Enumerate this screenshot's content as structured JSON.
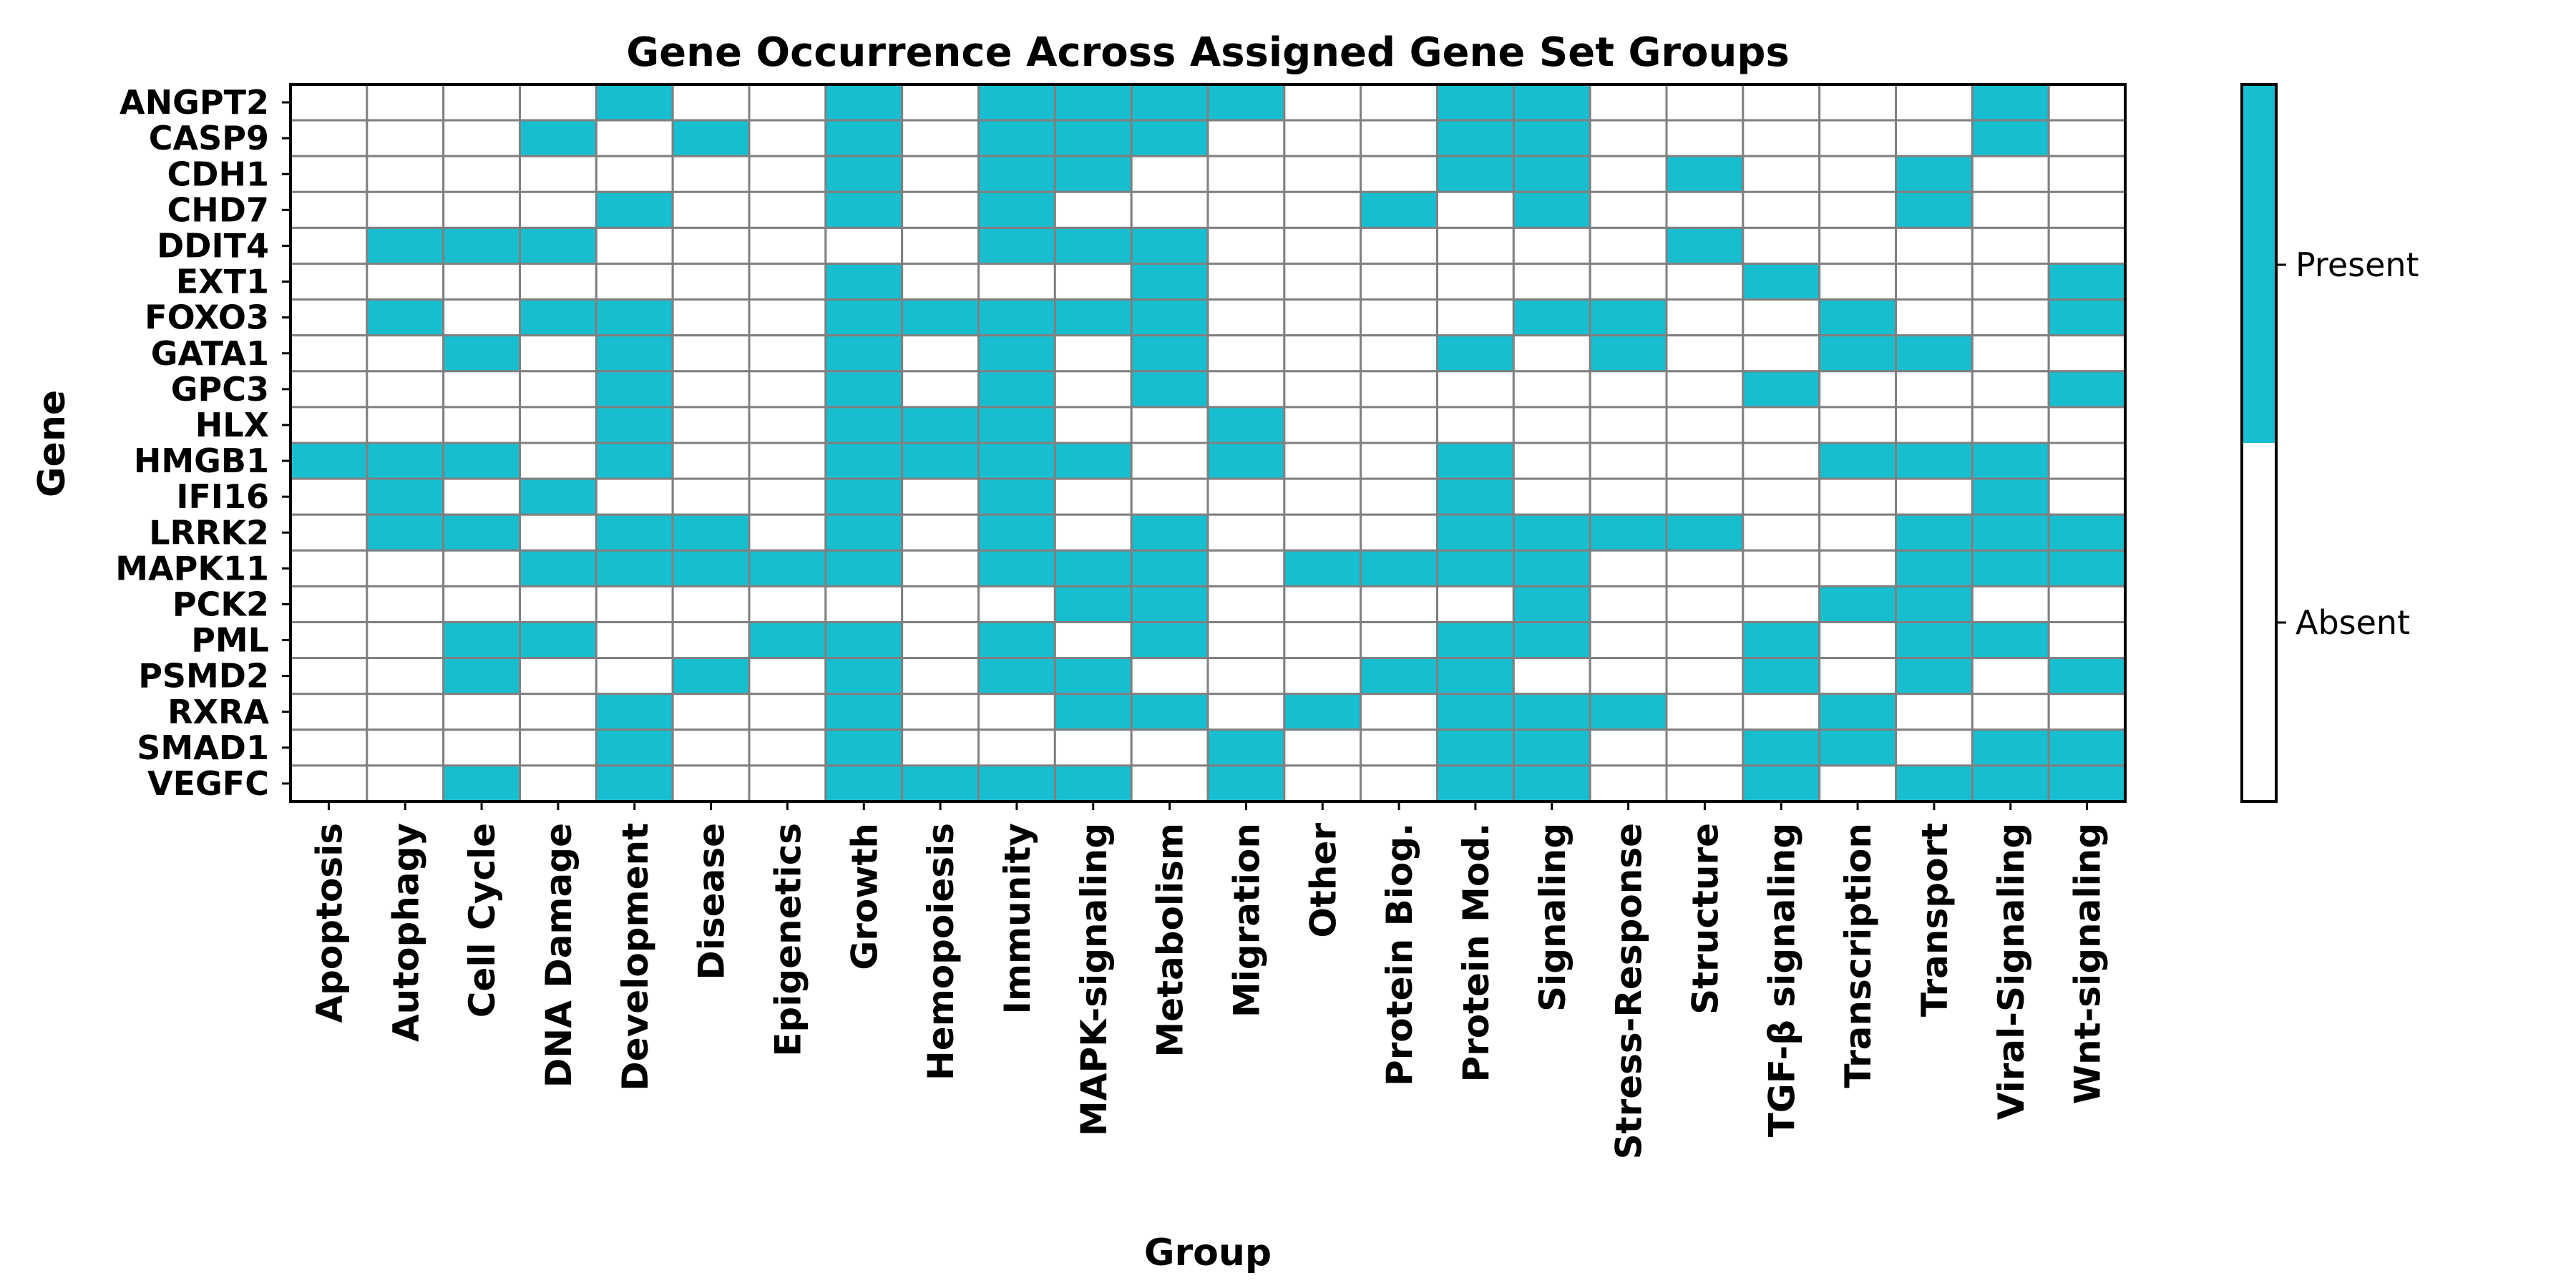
{
  "chart_data": {
    "type": "heatmap",
    "title": "Gene Occurrence Across Assigned Gene Set Groups",
    "xlabel": "Group",
    "ylabel": "Gene",
    "rows": [
      "ANGPT2",
      "CASP9",
      "CDH1",
      "CHD7",
      "DDIT4",
      "EXT1",
      "FOXO3",
      "GATA1",
      "GPC3",
      "HLX",
      "HMGB1",
      "IFI16",
      "LRRK2",
      "MAPK11",
      "PCK2",
      "PML",
      "PSMD2",
      "RXRA",
      "SMAD1",
      "VEGFC"
    ],
    "columns": [
      "Apoptosis",
      "Autophagy",
      "Cell Cycle",
      "DNA Damage",
      "Development",
      "Disease",
      "Epigenetics",
      "Growth",
      "Hemopoiesis",
      "Immunity",
      "MAPK-signaling",
      "Metabolism",
      "Migration",
      "Other",
      "Protein Biog.",
      "Protein Mod.",
      "Signaling",
      "Stress-Response",
      "Structure",
      "TGF-β signaling",
      "Transcription",
      "Transport",
      "Viral-Signaling",
      "Wnt-signaling"
    ],
    "values": [
      [
        0,
        0,
        0,
        0,
        1,
        0,
        0,
        1,
        0,
        1,
        1,
        1,
        1,
        0,
        0,
        1,
        1,
        0,
        0,
        0,
        0,
        0,
        1,
        0
      ],
      [
        0,
        0,
        0,
        1,
        0,
        1,
        0,
        1,
        0,
        1,
        1,
        1,
        0,
        0,
        0,
        1,
        1,
        0,
        0,
        0,
        0,
        0,
        1,
        0
      ],
      [
        0,
        0,
        0,
        0,
        0,
        0,
        0,
        1,
        0,
        1,
        1,
        0,
        0,
        0,
        0,
        1,
        1,
        0,
        1,
        0,
        0,
        1,
        0,
        0
      ],
      [
        0,
        0,
        0,
        0,
        1,
        0,
        0,
        1,
        0,
        1,
        0,
        0,
        0,
        0,
        1,
        0,
        1,
        0,
        0,
        0,
        0,
        1,
        0,
        0
      ],
      [
        0,
        1,
        1,
        1,
        0,
        0,
        0,
        0,
        0,
        1,
        1,
        1,
        0,
        0,
        0,
        0,
        0,
        0,
        1,
        0,
        0,
        0,
        0,
        0
      ],
      [
        0,
        0,
        0,
        0,
        0,
        0,
        0,
        1,
        0,
        0,
        0,
        1,
        0,
        0,
        0,
        0,
        0,
        0,
        0,
        1,
        0,
        0,
        0,
        1
      ],
      [
        0,
        1,
        0,
        1,
        1,
        0,
        0,
        1,
        1,
        1,
        1,
        1,
        0,
        0,
        0,
        0,
        1,
        1,
        0,
        0,
        1,
        0,
        0,
        1
      ],
      [
        0,
        0,
        1,
        0,
        1,
        0,
        0,
        1,
        0,
        1,
        0,
        1,
        0,
        0,
        0,
        1,
        0,
        1,
        0,
        0,
        1,
        1,
        0,
        0
      ],
      [
        0,
        0,
        0,
        0,
        1,
        0,
        0,
        1,
        0,
        1,
        0,
        1,
        0,
        0,
        0,
        0,
        0,
        0,
        0,
        1,
        0,
        0,
        0,
        1
      ],
      [
        0,
        0,
        0,
        0,
        1,
        0,
        0,
        1,
        1,
        1,
        0,
        0,
        1,
        0,
        0,
        0,
        0,
        0,
        0,
        0,
        0,
        0,
        0,
        0
      ],
      [
        1,
        1,
        1,
        0,
        1,
        0,
        0,
        1,
        1,
        1,
        1,
        0,
        1,
        0,
        0,
        1,
        0,
        0,
        0,
        0,
        1,
        1,
        1,
        0
      ],
      [
        0,
        1,
        0,
        1,
        0,
        0,
        0,
        1,
        0,
        1,
        0,
        0,
        0,
        0,
        0,
        1,
        0,
        0,
        0,
        0,
        0,
        0,
        1,
        0
      ],
      [
        0,
        1,
        1,
        0,
        1,
        1,
        0,
        1,
        0,
        1,
        0,
        1,
        0,
        0,
        0,
        1,
        1,
        1,
        1,
        0,
        0,
        1,
        1,
        1
      ],
      [
        0,
        0,
        0,
        1,
        1,
        1,
        1,
        1,
        0,
        1,
        1,
        1,
        0,
        1,
        1,
        1,
        1,
        0,
        0,
        0,
        0,
        1,
        1,
        1
      ],
      [
        0,
        0,
        0,
        0,
        0,
        0,
        0,
        0,
        0,
        0,
        1,
        1,
        0,
        0,
        0,
        0,
        1,
        0,
        0,
        0,
        1,
        1,
        0,
        0
      ],
      [
        0,
        0,
        1,
        1,
        0,
        0,
        1,
        1,
        0,
        1,
        0,
        1,
        0,
        0,
        0,
        1,
        1,
        0,
        0,
        1,
        0,
        1,
        1,
        0
      ],
      [
        0,
        0,
        1,
        0,
        0,
        1,
        0,
        1,
        0,
        1,
        1,
        0,
        0,
        0,
        1,
        1,
        0,
        0,
        0,
        1,
        0,
        1,
        0,
        1
      ],
      [
        0,
        0,
        0,
        0,
        1,
        0,
        0,
        1,
        0,
        0,
        1,
        1,
        0,
        1,
        0,
        1,
        1,
        1,
        0,
        0,
        1,
        0,
        0,
        0
      ],
      [
        0,
        0,
        0,
        0,
        1,
        0,
        0,
        1,
        0,
        0,
        0,
        0,
        1,
        0,
        0,
        1,
        1,
        0,
        0,
        1,
        1,
        0,
        1,
        1
      ],
      [
        0,
        0,
        1,
        0,
        1,
        0,
        0,
        1,
        1,
        1,
        1,
        0,
        1,
        0,
        0,
        1,
        1,
        0,
        0,
        1,
        0,
        1,
        1,
        1
      ]
    ],
    "legend": {
      "type": "colorbar",
      "placement": "right",
      "labels": [
        "Present",
        "Absent"
      ]
    },
    "colors": {
      "present": "#17becf",
      "absent": "#ffffff",
      "grid": "#808080",
      "frame": "#000000"
    }
  }
}
